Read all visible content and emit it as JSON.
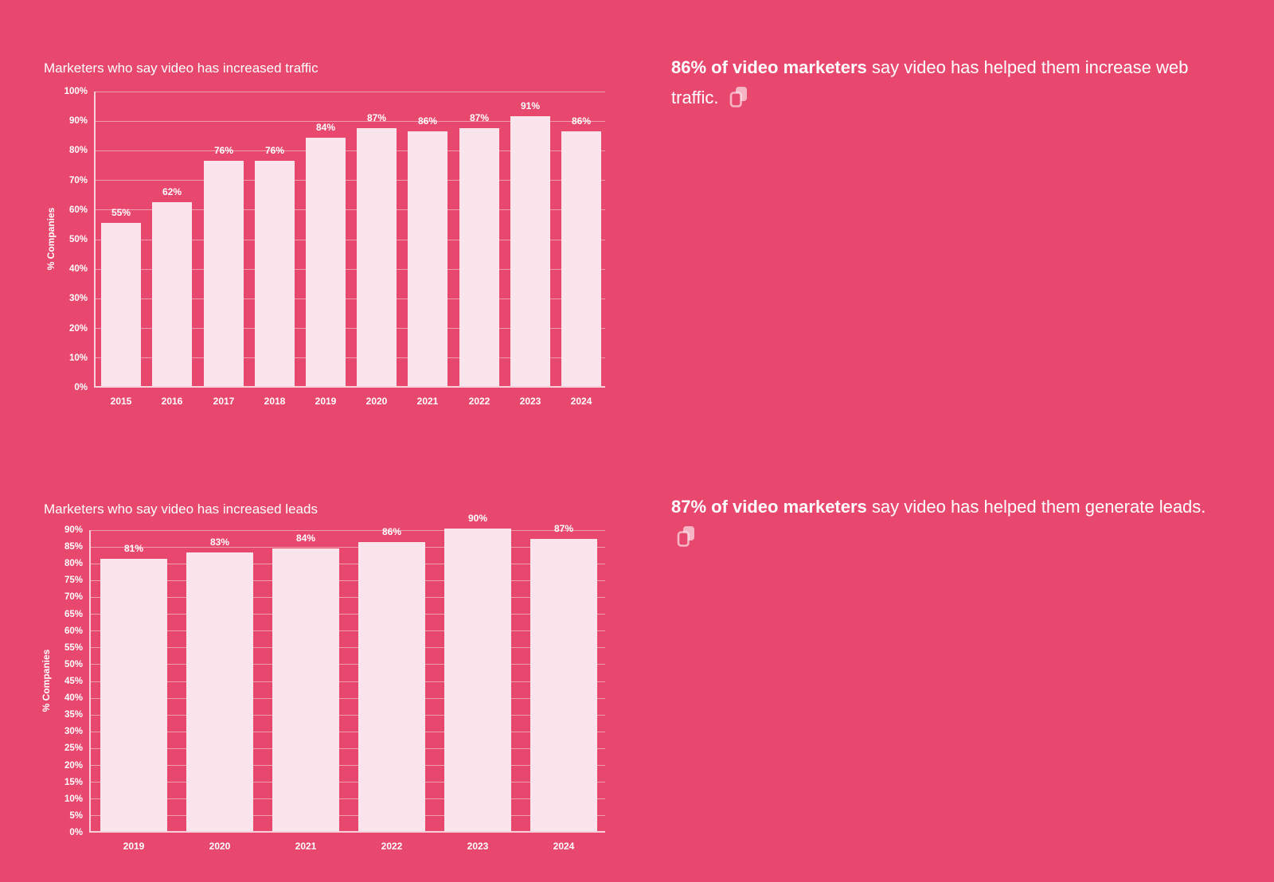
{
  "colors": {
    "background": "#E8486E",
    "bar": "#FBE5EC",
    "gridline": "rgba(255,255,255,0.45)",
    "axis": "rgba(255,255,255,0.75)",
    "text": "#FFFFFF",
    "icon": "rgba(255,255,255,0.6)"
  },
  "chart_data": [
    {
      "type": "bar",
      "title": "Marketers who say video has increased traffic",
      "xlabel": "",
      "ylabel": "% Companies",
      "categories": [
        "2015",
        "2016",
        "2017",
        "2018",
        "2019",
        "2020",
        "2021",
        "2022",
        "2023",
        "2024"
      ],
      "values": [
        55,
        62,
        76,
        76,
        84,
        87,
        86,
        87,
        91,
        86
      ],
      "ylim": [
        0,
        100
      ],
      "ytick_step": 10,
      "tick_suffix": "%",
      "grid": true,
      "legend": false
    },
    {
      "type": "bar",
      "title": "Marketers who say video has increased leads",
      "xlabel": "",
      "ylabel": "% Companies",
      "categories": [
        "2019",
        "2020",
        "2021",
        "2022",
        "2023",
        "2024"
      ],
      "values": [
        81,
        83,
        84,
        86,
        90,
        87
      ],
      "ylim": [
        0,
        90
      ],
      "ytick_step": 5,
      "tick_suffix": "%",
      "grid": true,
      "legend": false
    }
  ],
  "stats": [
    {
      "bold": "86% of video marketers",
      "rest": " say video has helped them increase web traffic.",
      "icon": "copy-icon"
    },
    {
      "bold": "87% of video marketers",
      "rest": " say video has helped them generate leads.",
      "icon": "copy-icon"
    }
  ]
}
